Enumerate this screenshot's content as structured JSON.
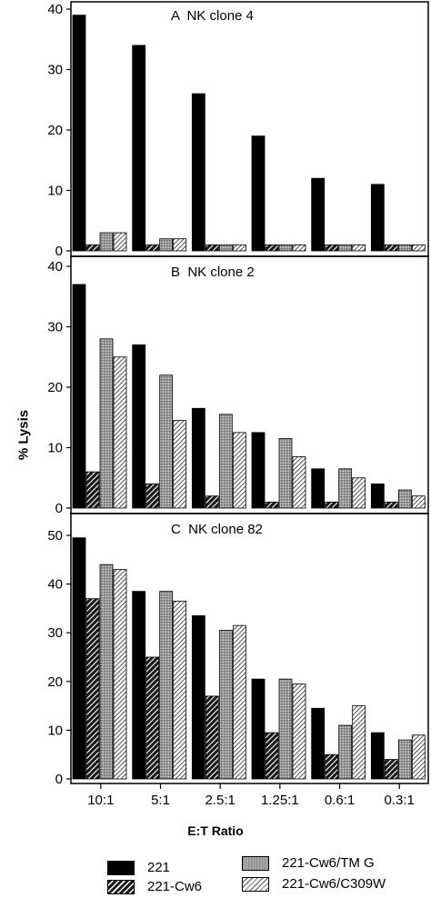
{
  "chart_data": {
    "type": "bar",
    "ylabel": "% Lysis",
    "xlabel": "E:T Ratio",
    "categories": [
      "10:1",
      "5:1",
      "2.5:1",
      "1.25:1",
      "0.6:1",
      "0.3:1"
    ],
    "legend": [
      "221",
      "221-Cw6",
      "221-Cw6/TM G",
      "221-Cw6/C309W"
    ],
    "panels": [
      {
        "title": "A  NK clone 4",
        "ylim": [
          0,
          40
        ],
        "yticks": [
          "0",
          "10",
          "20",
          "30",
          "40"
        ],
        "series": [
          {
            "name": "221",
            "values": [
              39,
              34,
              26,
              19,
              12,
              11
            ]
          },
          {
            "name": "221-Cw6",
            "values": [
              1,
              1,
              1,
              1,
              1,
              1
            ]
          },
          {
            "name": "221-Cw6/TM G",
            "values": [
              3,
              2,
              1,
              1,
              1,
              1
            ]
          },
          {
            "name": "221-Cw6/C309W",
            "values": [
              3,
              2,
              1,
              1,
              1,
              1
            ]
          }
        ]
      },
      {
        "title": "B  NK clone 2",
        "ylim": [
          0,
          40
        ],
        "yticks": [
          "0",
          "10",
          "20",
          "30",
          "40"
        ],
        "series": [
          {
            "name": "221",
            "values": [
              37,
              27,
              16.5,
              12.5,
              6.5,
              4
            ]
          },
          {
            "name": "221-Cw6",
            "values": [
              6,
              4,
              2,
              1,
              1,
              1
            ]
          },
          {
            "name": "221-Cw6/TM G",
            "values": [
              28,
              22,
              15.5,
              11.5,
              6.5,
              3
            ]
          },
          {
            "name": "221-Cw6/C309W",
            "values": [
              25,
              14.5,
              12.5,
              8.5,
              5,
              2
            ]
          }
        ]
      },
      {
        "title": "C  NK clone 82",
        "ylim": [
          0,
          50
        ],
        "yticks": [
          "0",
          "10",
          "20",
          "30",
          "40",
          "50"
        ],
        "series": [
          {
            "name": "221",
            "values": [
              49.5,
              38.5,
              33.5,
              20.5,
              14.5,
              9.5
            ]
          },
          {
            "name": "221-Cw6",
            "values": [
              37,
              25,
              17,
              9.5,
              5,
              4
            ]
          },
          {
            "name": "221-Cw6/TM G",
            "values": [
              44,
              38.5,
              30.5,
              20.5,
              11,
              8
            ]
          },
          {
            "name": "221-Cw6/C309W",
            "values": [
              43,
              36.5,
              31.5,
              19.5,
              15,
              9
            ]
          }
        ]
      }
    ]
  }
}
